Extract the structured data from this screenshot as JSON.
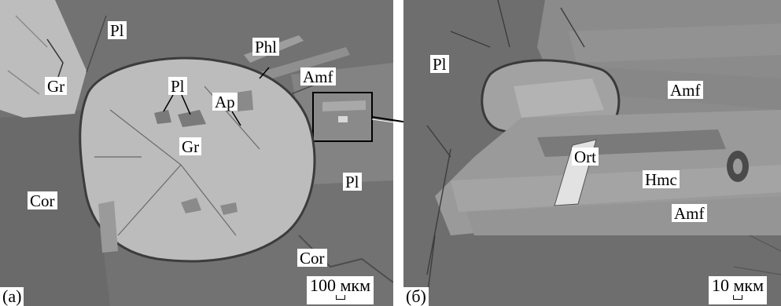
{
  "figure": {
    "panel_a": {
      "panel_label": "(а)",
      "labels": {
        "pl_top": "Pl",
        "gr_left": "Gr",
        "phl": "Phl",
        "amf": "Amf",
        "pl_inner": "Pl",
        "ap": "Ap",
        "gr_center": "Gr",
        "cor_left": "Cor",
        "pl_right": "Pl",
        "cor_bottom": "Cor"
      },
      "scale_text": "100 мкм"
    },
    "panel_b": {
      "panel_label": "(б)",
      "labels": {
        "pl": "Pl",
        "amf_top": "Amf",
        "ort": "Ort",
        "hmc": "Hmc",
        "amf_bottom": "Amf"
      },
      "scale_text": "10 мкм"
    }
  }
}
